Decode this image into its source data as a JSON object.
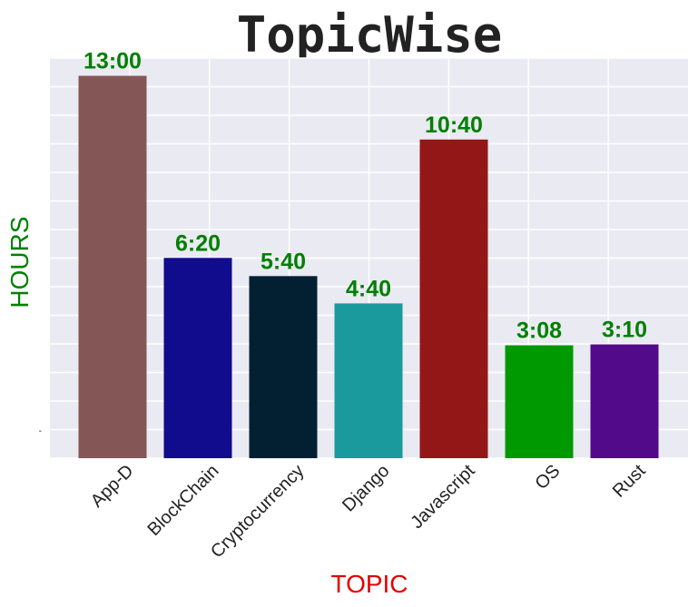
{
  "chart_data": {
    "type": "bar",
    "title": "TopicWise",
    "xlabel": "TOPIC",
    "ylabel": "HOURS",
    "categories": [
      "App-D",
      "BlockChain",
      "Cryptocurrency",
      "Django",
      "Javascript",
      "OS",
      "Rust"
    ],
    "values": [
      13.0,
      6.333,
      5.667,
      4.667,
      10.667,
      3.133,
      3.167
    ],
    "data_labels": [
      "13:00",
      "6:20",
      "5:40",
      "4:40",
      "10:40",
      "3:08",
      "3:10"
    ],
    "bar_colors": [
      "#855656",
      "#110b8e",
      "#022032",
      "#1a9a9c",
      "#941717",
      "#019902",
      "#530a8a"
    ],
    "ytick_labels": [
      "-"
    ],
    "ylim": [
      -1.0,
      13.65
    ],
    "grid": true,
    "colors": {
      "background": "#eaeaf2",
      "grid": "#ffffff",
      "xlabel": "#e60000",
      "ylabel": "#008000",
      "data_label": "#008000"
    }
  }
}
